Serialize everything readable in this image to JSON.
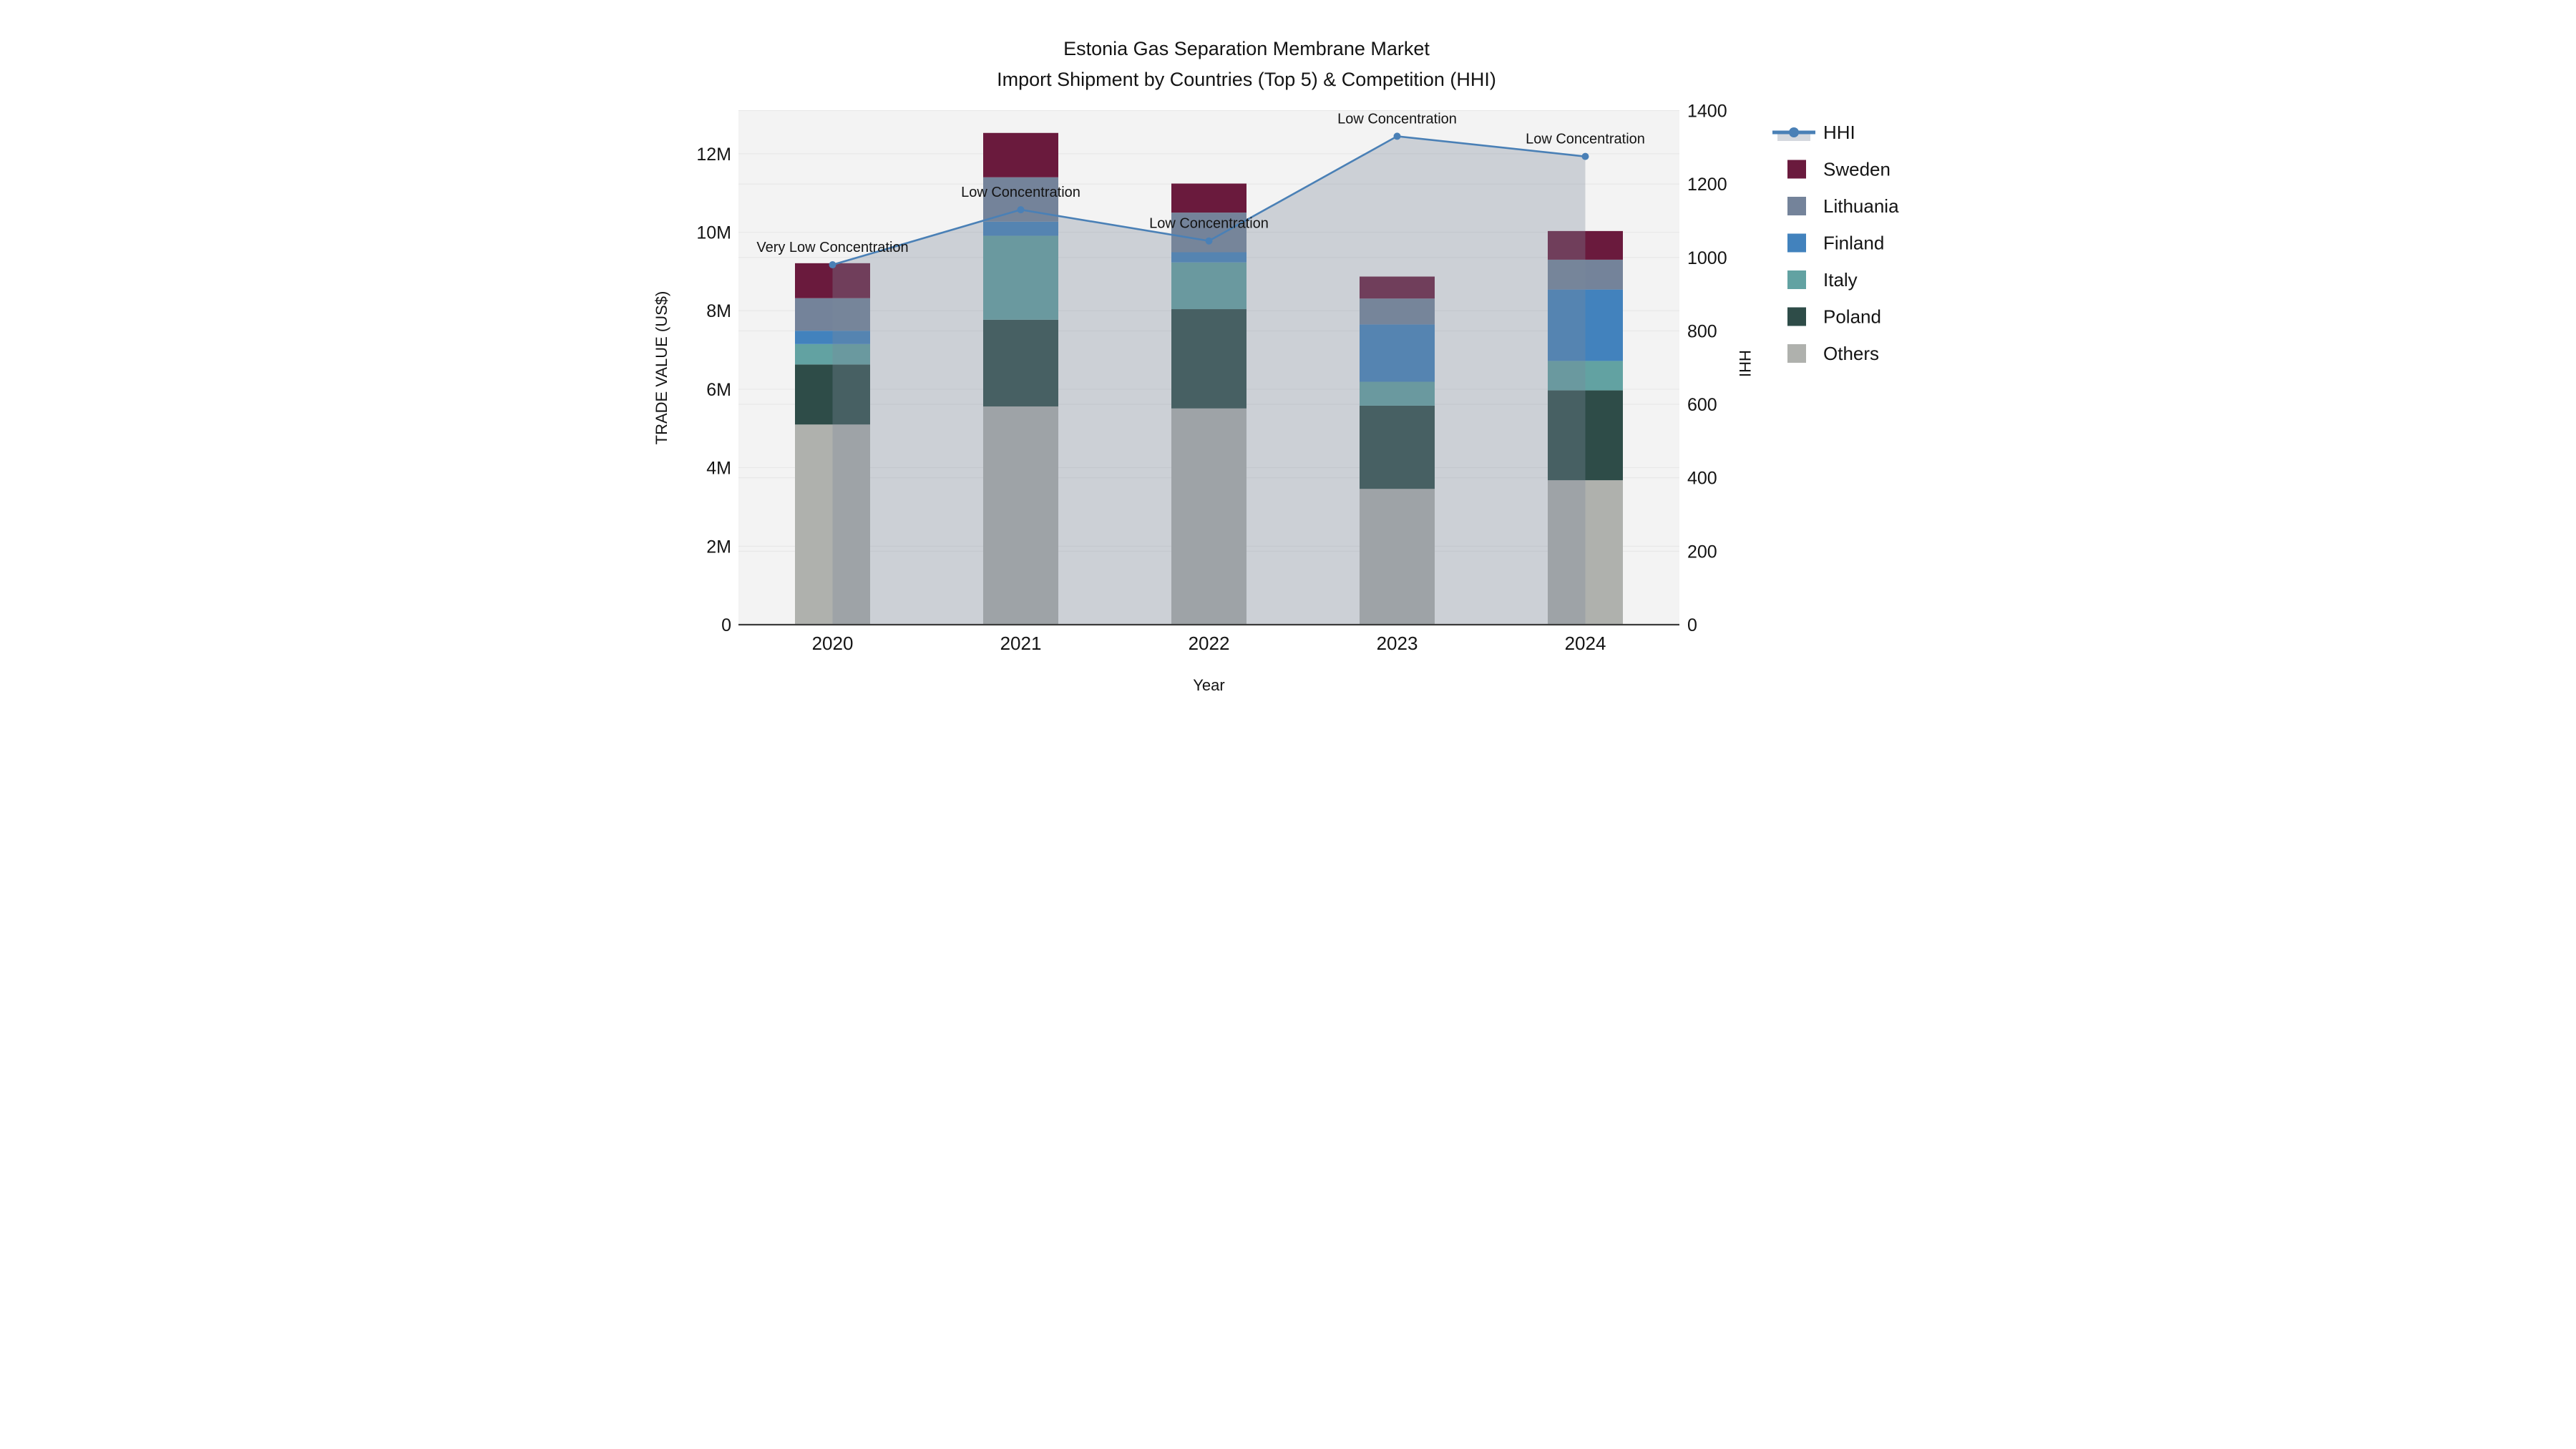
{
  "title": {
    "line1": "Estonia Gas Separation Membrane Market",
    "line2": "Import Shipment by Countries (Top 5) & Competition (HHI)"
  },
  "axes": {
    "x_title": "Year",
    "y_left_title": "TRADE VALUE (US$)",
    "y_right_title": "HHI",
    "y_left_tick_labels": [
      "0",
      "2M",
      "4M",
      "6M",
      "8M",
      "10M",
      "12M"
    ],
    "y_left_tick_values_musd": [
      0,
      2,
      4,
      6,
      8,
      10,
      12
    ],
    "y_right_tick_labels": [
      "0",
      "200",
      "400",
      "600",
      "800",
      "1000",
      "1200",
      "1400"
    ],
    "y_right_tick_values": [
      0,
      200,
      400,
      600,
      800,
      1000,
      1200,
      1400
    ]
  },
  "legend": {
    "items": [
      {
        "label": "HHI",
        "type": "line",
        "color": "#4A80B6"
      },
      {
        "label": "Sweden",
        "type": "swatch",
        "color": "#6A1A3D"
      },
      {
        "label": "Lithuania",
        "type": "swatch",
        "color": "#74839A"
      },
      {
        "label": "Finland",
        "type": "swatch",
        "color": "#4282BD"
      },
      {
        "label": "Italy",
        "type": "swatch",
        "color": "#62A2A2"
      },
      {
        "label": "Poland",
        "type": "swatch",
        "color": "#2E4C48"
      },
      {
        "label": "Others",
        "type": "swatch",
        "color": "#AFB1AD"
      }
    ]
  },
  "chart_data": {
    "type": "bar",
    "subtype": "stacked-bars-with-line-area-overlay",
    "categories": [
      "2020",
      "2021",
      "2022",
      "2023",
      "2024"
    ],
    "series": [
      {
        "name": "Sweden",
        "color": "#6A1A3D",
        "values_usd_m": [
          0.89,
          1.13,
          0.74,
          0.56,
          0.73
        ]
      },
      {
        "name": "Lithuania",
        "color": "#74839A",
        "values_usd_m": [
          0.83,
          1.13,
          1.01,
          0.66,
          0.76
        ]
      },
      {
        "name": "Finland",
        "color": "#4282BD",
        "values_usd_m": [
          0.34,
          0.36,
          0.26,
          1.46,
          1.82
        ]
      },
      {
        "name": "Italy",
        "color": "#62A2A2",
        "values_usd_m": [
          0.52,
          2.14,
          1.19,
          0.61,
          0.75
        ]
      },
      {
        "name": "Poland",
        "color": "#2E4C48",
        "values_usd_m": [
          1.53,
          2.21,
          2.53,
          2.12,
          2.29
        ]
      },
      {
        "name": "Others",
        "color": "#AFB1AD",
        "values_usd_m": [
          5.1,
          5.56,
          5.51,
          3.46,
          3.68
        ]
      }
    ],
    "stack_order_bottom_to_top": [
      "Others",
      "Poland",
      "Italy",
      "Finland",
      "Lithuania",
      "Sweden"
    ],
    "bar_totals_usd_m": [
      9.21,
      12.53,
      11.24,
      8.87,
      10.03
    ],
    "line": {
      "name": "HHI",
      "values": [
        980,
        1130,
        1045,
        1330,
        1275
      ],
      "color": "#4A80B6",
      "marker": "circle",
      "area_fill": "rgba(124,138,156,0.33)"
    },
    "annotations": [
      {
        "category": "2020",
        "text": "Very Low Concentration"
      },
      {
        "category": "2021",
        "text": "Low Concentration"
      },
      {
        "category": "2022",
        "text": "Low Concentration"
      },
      {
        "category": "2023",
        "text": "Low Concentration"
      },
      {
        "category": "2024",
        "text": "Low Concentration"
      }
    ],
    "y_left_axis": {
      "label": "TRADE VALUE (US$)",
      "min": 0,
      "max_display_m": 13.1,
      "tick_step_m": 2
    },
    "y_right_axis": {
      "label": "HHI",
      "min": 0,
      "max": 1400,
      "tick_step": 200
    },
    "legend_position": "right",
    "grid": true,
    "plot_bg": "#F3F3F3",
    "grid_color": "#E7E7E7",
    "axis_line_color": "#3B3B3B"
  }
}
